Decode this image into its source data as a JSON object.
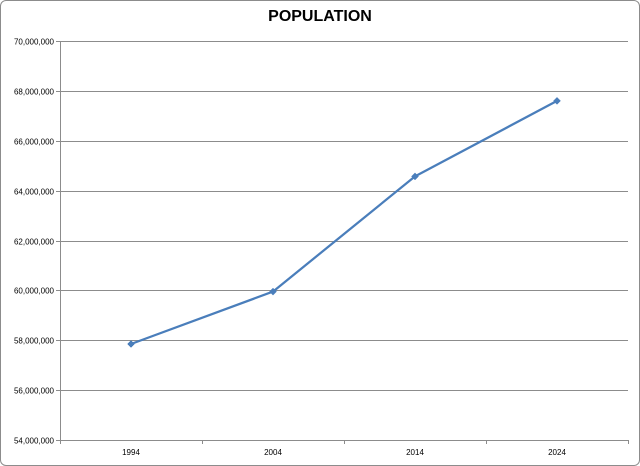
{
  "chart_data": {
    "type": "line",
    "title": "POPULATION",
    "xlabel": "",
    "ylabel": "",
    "categories": [
      "1994",
      "2004",
      "2014",
      "2024"
    ],
    "series": [
      {
        "values": [
          57850000,
          59950000,
          64570000,
          67600000
        ]
      }
    ],
    "ylim": [
      54000000,
      70000000
    ],
    "yticks": [
      54000000,
      56000000,
      58000000,
      60000000,
      62000000,
      64000000,
      66000000,
      68000000,
      70000000
    ],
    "ytick_labels": [
      "54,000,000",
      "56,000,000",
      "58,000,000",
      "60,000,000",
      "62,000,000",
      "64,000,000",
      "66,000,000",
      "68,000,000",
      "70,000,000"
    ],
    "grid": true,
    "legend": "none",
    "colors": {
      "line": "#4a7ebb",
      "grid": "#8c8c8c",
      "axis": "#8c8c8c"
    }
  }
}
